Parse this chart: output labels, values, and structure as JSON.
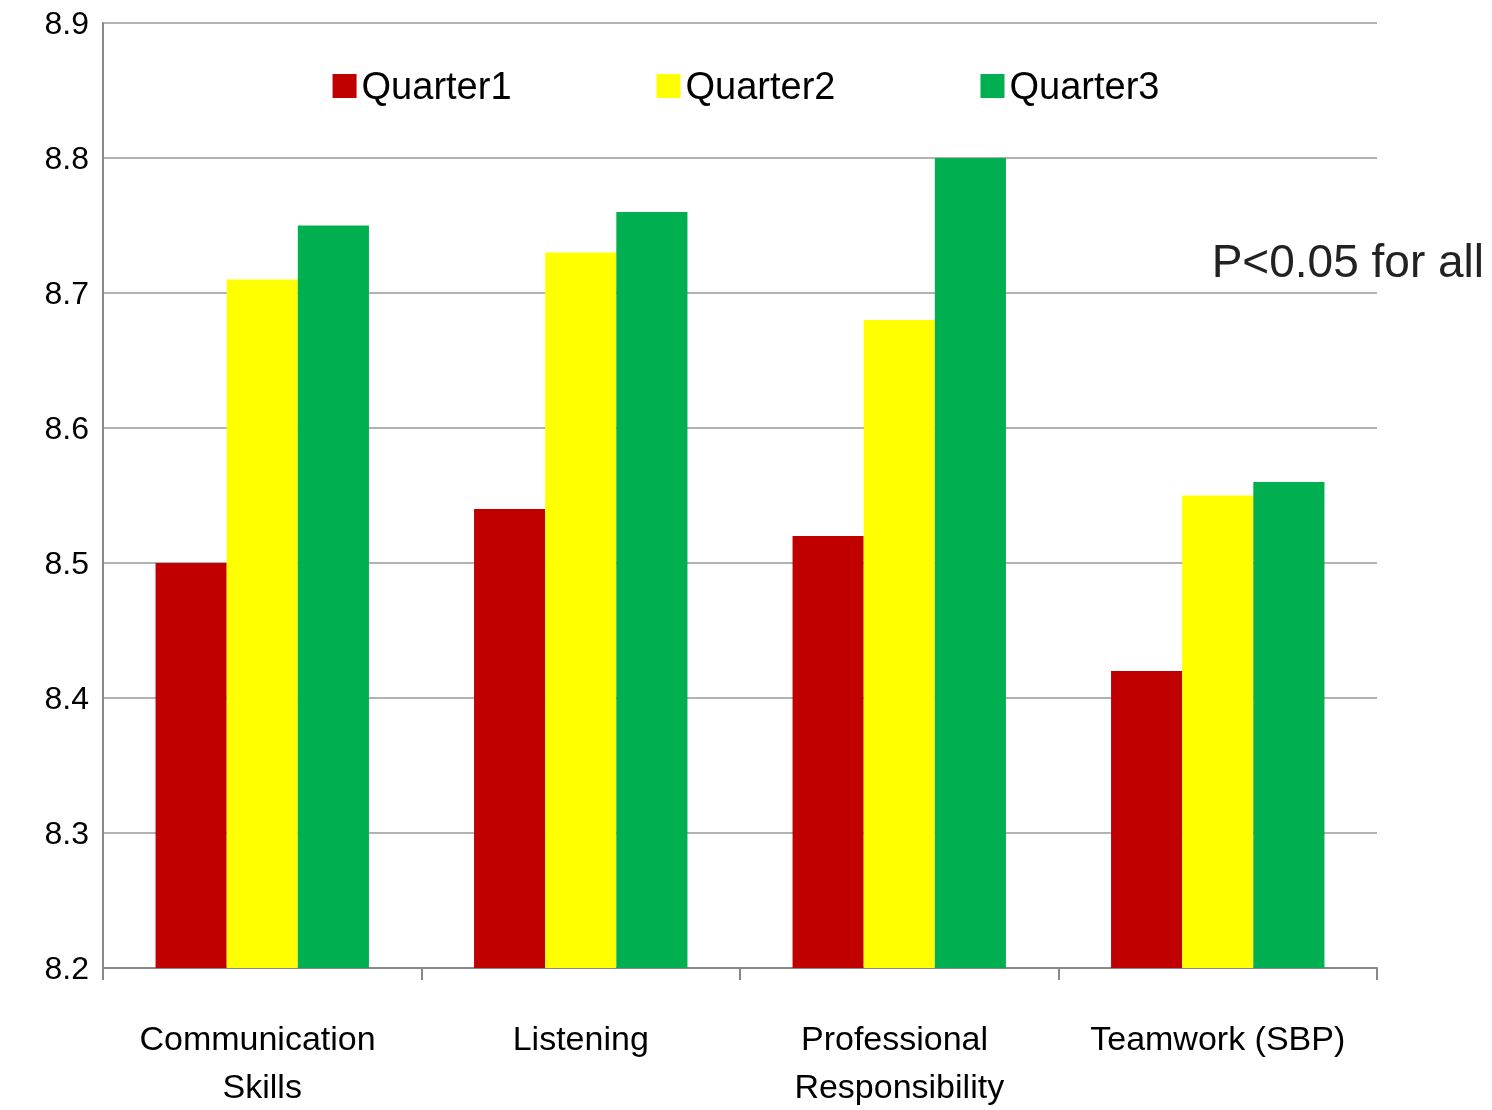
{
  "chart_data": {
    "type": "bar",
    "categories": [
      "Communication Skills",
      "Listening",
      "Professional Responsibility",
      "Teamwork (SBP)"
    ],
    "series": [
      {
        "name": "Quarter1",
        "color": "#c00000",
        "values": [
          8.5,
          8.54,
          8.52,
          8.42
        ]
      },
      {
        "name": "Quarter2",
        "color": "#ffff00",
        "values": [
          8.71,
          8.73,
          8.68,
          8.55
        ]
      },
      {
        "name": "Quarter3",
        "color": "#00b050",
        "values": [
          8.75,
          8.76,
          8.8,
          8.56
        ]
      }
    ],
    "ylim": [
      8.2,
      8.9
    ],
    "yticks": [
      8.2,
      8.3,
      8.4,
      8.5,
      8.6,
      8.7,
      8.8,
      8.9
    ],
    "grid": "y",
    "legend": "top",
    "annotations": [
      "P<0.05 for all"
    ]
  }
}
